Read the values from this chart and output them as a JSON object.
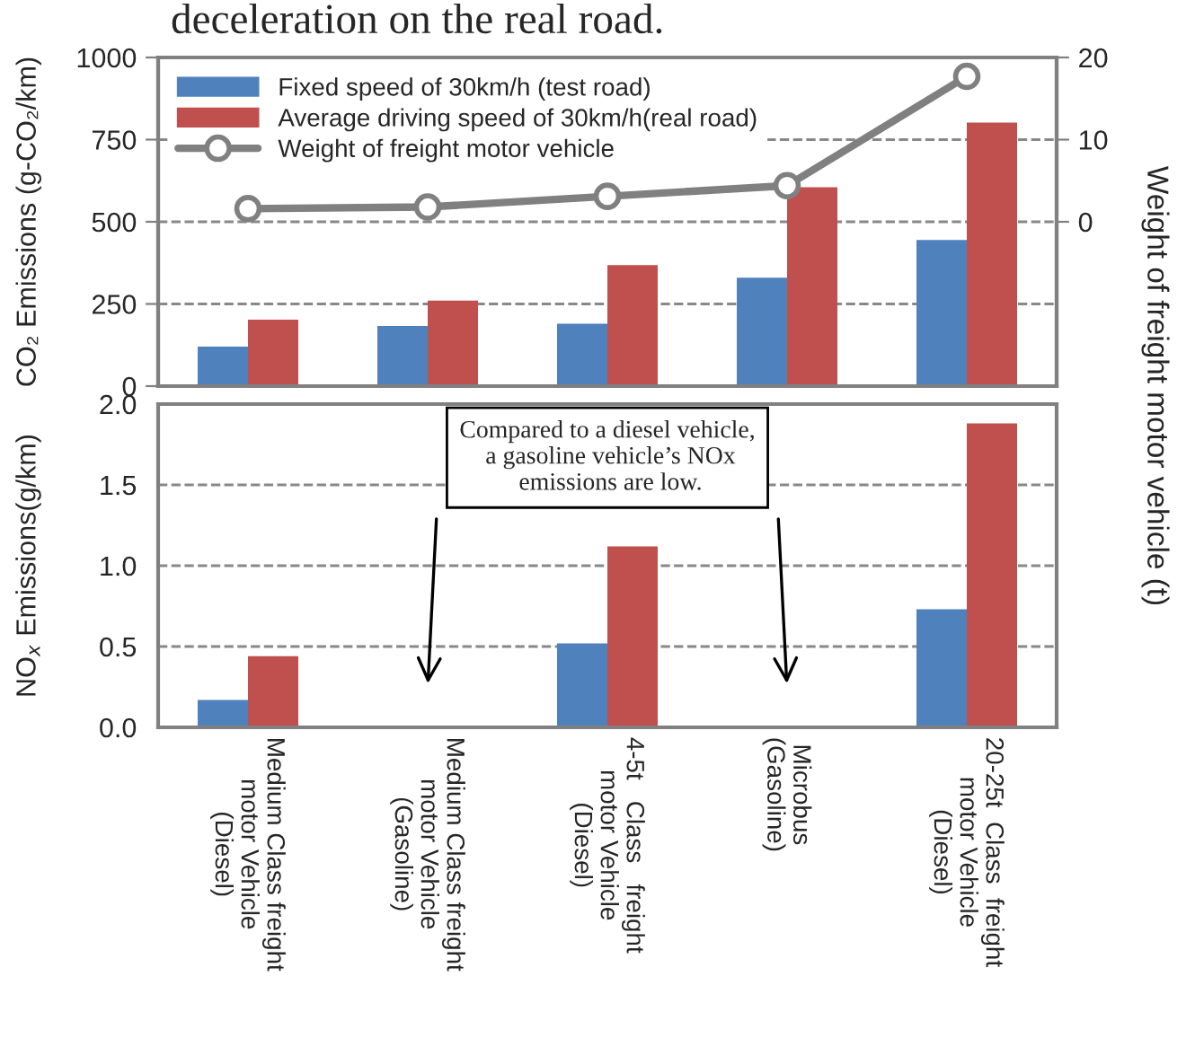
{
  "chart_data": [
    {
      "type": "bar",
      "title": "deceleration on the real road.",
      "ylabel": "CO₂ Emissions (g-CO₂/km)",
      "y2label": "Weight of freight motor vehicle (t)",
      "categories": [
        null,
        null,
        null,
        null,
        null
      ],
      "series": [
        {
          "name": "Fixed speed of 30km/h (test road)",
          "color": "#4f81bd",
          "values": [
            120,
            183,
            190,
            330,
            445
          ]
        },
        {
          "name": "Average driving speed of 30km/h(real road)",
          "color": "#c0504d",
          "values": [
            202,
            260,
            368,
            605,
            802
          ]
        },
        {
          "name": "Weight of freight motor vehicle",
          "type": "line",
          "axis": "y2",
          "color": "#808080",
          "values": [
            1.6,
            1.8,
            3.1,
            4.4,
            17.7
          ]
        }
      ],
      "ylim": [
        0,
        1000
      ],
      "yticks": [
        0,
        250,
        500,
        750,
        1000
      ],
      "y2lim": [
        -20,
        20
      ],
      "y2ticks": [
        0,
        10,
        20
      ],
      "grid": "y",
      "legend": "top left",
      "marker": "circle",
      "tick_labels": "y"
    },
    {
      "type": "bar",
      "ylabel": "NO$_{x}$ Emissions(g/km)",
      "categories": [
        "Medium Class freight\nmotor Vehicle\n(Diesel)",
        "Medium Class freight\nmotor Vehicle\n(Gasoline)",
        "4-5t   Class   freight\nmotor Vehicle\n(Diesel)",
        "Microbus\n(Gasoline)",
        "20-25t  Class  freight\nmotor Vehicle\n(Diesel)"
      ],
      "series": [
        {
          "color": "#4f81bd",
          "values": [
            0.17,
            0,
            0.52,
            0,
            0.73
          ]
        },
        {
          "color": "#c0504d",
          "values": [
            0.44,
            0,
            1.12,
            0,
            1.88
          ]
        }
      ],
      "ylim": [
        0,
        2.0
      ],
      "yticks": [
        {
          "value": 0,
          "label": "0.0"
        },
        {
          "value": 0.5,
          "label": "0.5"
        },
        {
          "value": 1.0,
          "label": "1.0"
        },
        {
          "value": 1.5,
          "label": "1.5"
        },
        {
          "value": 2.0,
          "label": "2.0"
        }
      ],
      "grid": "y",
      "annotations": [
        "Compared to a diesel vehicle,\n a gasoline vehicle’s NOx\n emissions are low."
      ]
    }
  ]
}
